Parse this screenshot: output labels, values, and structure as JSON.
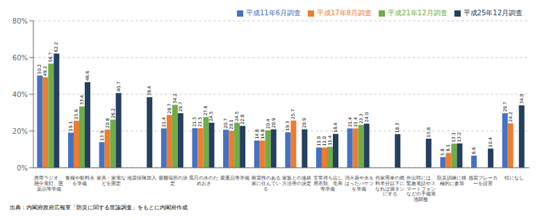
{
  "chart_data": {
    "type": "bar",
    "categories": [
      "携帯ラジオ、懸中電灯、医薬品等準備",
      "食糧や飲料水を準備",
      "家具・家電などを固定",
      "地震保険加入",
      "避難場所の決定",
      "風呂の水のためおき",
      "貴重品等準備",
      "耐震性のある家に住んでいる",
      "家族との連絡方法等の決定",
      "非常持ち出し用衣類、毛布等準備",
      "消火器や水をはったバケツを準備",
      "自家用車の燃料半分以下になれば満タンにする",
      "外出時には、緊急電話やスマートフォンなどの予備電池調整",
      "防災訓練に積極的に参加",
      "感震ブレーカーを設置",
      "特になし"
    ],
    "series": [
      {
        "name": "平成11年6月調査",
        "color": "#4472C4",
        "values": [
          50.2,
          19.1,
          13.9,
          0,
          21.4,
          21.5,
          20.7,
          14.8,
          19.3,
          11.0,
          21.4,
          0,
          0,
          5.8,
          6.6,
          29.7
        ],
        "value_labels": [
          "50.2",
          "19.1",
          "13.9",
          null,
          "21.4",
          "21.5",
          "20.7",
          "14.8",
          "19.3",
          "11.0",
          "21.4",
          null,
          null,
          "5.8",
          "6.6",
          "29.7"
        ]
      },
      {
        "name": "平成17年8月調査",
        "color": "#ED7D31",
        "values": [
          49.2,
          25.6,
          20.8,
          0,
          28.7,
          21.5,
          20.1,
          14.8,
          25.7,
          11.0,
          21.4,
          0,
          0,
          8.1,
          0,
          24.2
        ],
        "value_labels": [
          "49.2",
          "25.6",
          "20.8",
          null,
          "28.7",
          "21.5",
          "20.1",
          "14.8",
          "25.7",
          "11.0",
          "21.4",
          null,
          null,
          "8.1",
          null,
          "24.2"
        ]
      },
      {
        "name": "平成21年12月調査",
        "color": "#70AD47",
        "values": [
          56.7,
          33.4,
          26.2,
          0,
          34.2,
          27.6,
          24.5,
          20.4,
          0,
          11.4,
          23.3,
          0,
          0,
          13.1,
          0,
          0
        ],
        "value_labels": [
          "56.7",
          "33.4",
          "26.2",
          null,
          "34.2",
          "27.6",
          "24.5",
          "20.4",
          null,
          "11.4",
          "23.3",
          null,
          null,
          "13.1",
          null,
          null
        ]
      },
      {
        "name": "平成25年12月調査",
        "color": "#243F60",
        "values": [
          62.2,
          46.6,
          40.7,
          38.4,
          29.7,
          24.5,
          22.8,
          20.9,
          20.9,
          18.4,
          24.0,
          18.3,
          15.8,
          13.2,
          10.4,
          34.0
        ],
        "value_labels": [
          "62.2",
          "46.6",
          "40.7",
          "38.4",
          "29.7",
          "24.5",
          "22.8",
          "20.9",
          "20.9",
          "18.4",
          "24.0",
          "18.3",
          "15.8",
          "13.2",
          "10.4",
          "34.0"
        ]
      }
    ],
    "ylim": [
      0,
      80
    ],
    "yticks": [
      {
        "value": 0,
        "label": "0%"
      },
      {
        "value": 20,
        "label": "20%"
      },
      {
        "value": 40,
        "label": "40%"
      },
      {
        "value": 60,
        "label": "60%"
      },
      {
        "value": 80,
        "label": "80%"
      }
    ],
    "grid": true,
    "legend": "upper right",
    "data_labels": true,
    "annotations": [
      "出典：内閣府政府広報室「防災に関する世論調査」をもとに内閣府作成"
    ]
  }
}
